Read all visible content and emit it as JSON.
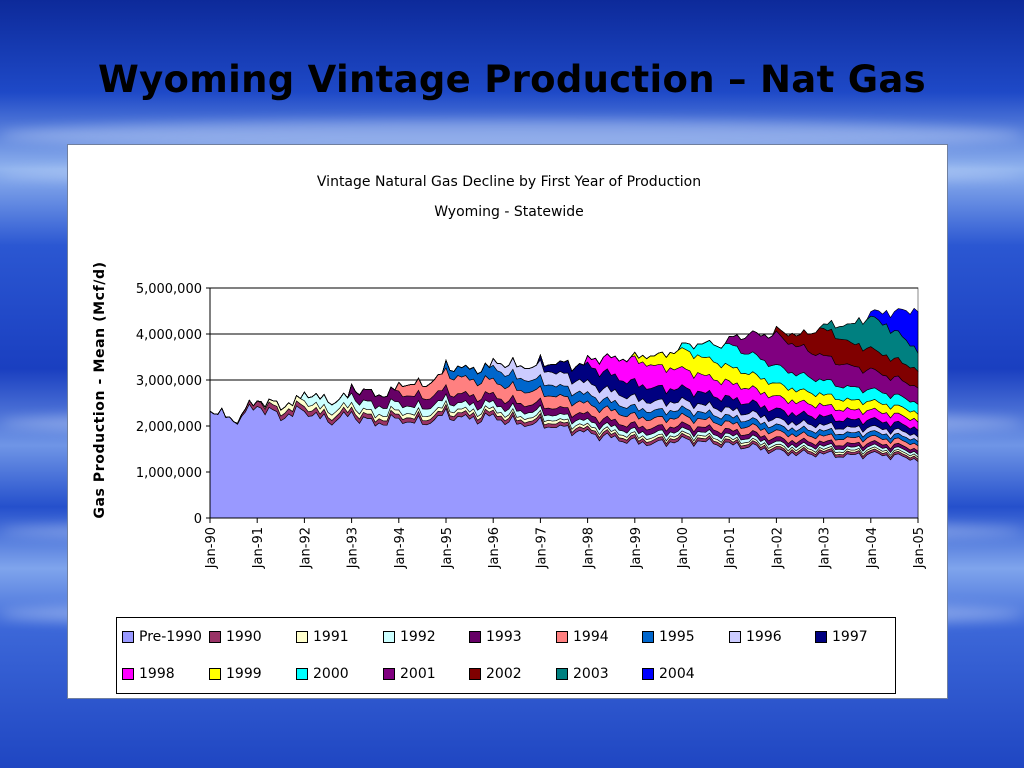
{
  "slide": {
    "title": "Wyoming Vintage Production – Nat Gas"
  },
  "chart_data": {
    "type": "area",
    "stacked": true,
    "title": "Vintage Natural Gas Decline by First Year of Production",
    "subtitle": "Wyoming - Statewide",
    "ylabel": "Gas Production - Mean (Mcf/d)",
    "xlabel": "",
    "ylim": [
      0,
      5000000
    ],
    "yticks": [
      "0",
      "1,000,000",
      "2,000,000",
      "3,000,000",
      "4,000,000",
      "5,000,000"
    ],
    "xticks": [
      "Jan-90",
      "Jan-91",
      "Jan-92",
      "Jan-93",
      "Jan-94",
      "Jan-95",
      "Jan-96",
      "Jan-97",
      "Jan-98",
      "Jan-99",
      "Jan-00",
      "Jan-01",
      "Jan-02",
      "Jan-03",
      "Jan-04",
      "Jan-05"
    ],
    "grid": "horizontal",
    "legend_position": "bottom",
    "x": [
      1990.0,
      1990.5,
      1991.0,
      1991.5,
      1992.0,
      1992.5,
      1993.0,
      1993.5,
      1994.0,
      1994.5,
      1995.0,
      1995.5,
      1996.0,
      1996.5,
      1997.0,
      1997.5,
      1998.0,
      1998.5,
      1999.0,
      1999.5,
      2000.0,
      2000.5,
      2001.0,
      2001.5,
      2002.0,
      2002.5,
      2003.0,
      2003.5,
      2004.0,
      2004.5,
      2005.0
    ],
    "series": [
      {
        "name": "Pre-1990",
        "color": "#9999ff",
        "start": 1990.0,
        "values": [
          2400000,
          2100000,
          2450000,
          2200000,
          2350000,
          2100000,
          2250000,
          2050000,
          2150000,
          2050000,
          2250000,
          2150000,
          2200000,
          2050000,
          2050000,
          1950000,
          1850000,
          1750000,
          1650000,
          1620000,
          1700000,
          1650000,
          1600000,
          1550000,
          1450000,
          1400000,
          1400000,
          1350000,
          1400000,
          1350000,
          1280000
        ]
      },
      {
        "name": "1990",
        "color": "#993366",
        "start": 1990.5,
        "values": [
          0,
          0,
          120000,
          110000,
          105000,
          100000,
          95000,
          92000,
          90000,
          88000,
          86000,
          84000,
          82000,
          80000,
          78000,
          76000,
          74000,
          72000,
          70000,
          68000,
          66000,
          64000,
          62000,
          60000,
          58000,
          56000,
          55000,
          54000,
          53000,
          52000,
          51000
        ]
      },
      {
        "name": "1991",
        "color": "#ffffcc",
        "start": 1991.0,
        "values": [
          0,
          0,
          0,
          130000,
          120000,
          110000,
          102000,
          95000,
          90000,
          86000,
          82000,
          79000,
          76000,
          73000,
          70000,
          68000,
          66000,
          64000,
          62000,
          60000,
          58000,
          56000,
          54000,
          52000,
          50000,
          49000,
          48000,
          47000,
          46000,
          45000,
          44000
        ]
      },
      {
        "name": "1992",
        "color": "#ccffff",
        "start": 1992.0,
        "values": [
          0,
          0,
          0,
          0,
          180000,
          220000,
          200000,
          185000,
          170000,
          160000,
          150000,
          140000,
          132000,
          125000,
          118000,
          112000,
          106000,
          100000,
          95000,
          90000,
          86000,
          82000,
          78000,
          75000,
          72000,
          69000,
          66000,
          64000,
          62000,
          60000,
          58000
        ]
      },
      {
        "name": "1993",
        "color": "#660066",
        "start": 1993.0,
        "values": [
          0,
          0,
          0,
          0,
          0,
          0,
          200000,
          260000,
          240000,
          220000,
          205000,
          190000,
          178000,
          166000,
          156000,
          146000,
          138000,
          130000,
          123000,
          116000,
          110000,
          104000,
          99000,
          94000,
          90000,
          86000,
          82000,
          79000,
          76000,
          73000,
          70000
        ]
      },
      {
        "name": "1994",
        "color": "#ff8080",
        "start": 1994.0,
        "values": [
          0,
          0,
          0,
          0,
          0,
          0,
          0,
          0,
          200000,
          280000,
          380000,
          350000,
          320000,
          295000,
          272000,
          252000,
          234000,
          218000,
          204000,
          192000,
          181000,
          171000,
          162000,
          154000,
          146000,
          139000,
          133000,
          127000,
          122000,
          117000,
          112000
        ]
      },
      {
        "name": "1995",
        "color": "#0066cc",
        "start": 1995.0,
        "values": [
          0,
          0,
          0,
          0,
          0,
          0,
          0,
          0,
          0,
          0,
          160000,
          240000,
          280000,
          260000,
          240000,
          222000,
          206000,
          192000,
          180000,
          169000,
          159000,
          150000,
          142000,
          135000,
          128000,
          122000,
          116000,
          111000,
          106000,
          101000,
          97000
        ]
      },
      {
        "name": "1996",
        "color": "#ccccff",
        "start": 1996.0,
        "values": [
          0,
          0,
          0,
          0,
          0,
          0,
          0,
          0,
          0,
          0,
          0,
          0,
          140000,
          260000,
          300000,
          275000,
          252000,
          232000,
          214000,
          198000,
          184000,
          171000,
          160000,
          150000,
          141000,
          133000,
          126000,
          119000,
          113000,
          107000,
          102000
        ]
      },
      {
        "name": "1997",
        "color": "#000080",
        "start": 1997.0,
        "values": [
          0,
          0,
          0,
          0,
          0,
          0,
          0,
          0,
          0,
          0,
          0,
          0,
          0,
          0,
          100000,
          250000,
          380000,
          350000,
          322000,
          297000,
          275000,
          255000,
          237000,
          221000,
          206000,
          193000,
          181000,
          170000,
          160000,
          151000,
          143000
        ]
      },
      {
        "name": "1998",
        "color": "#ff00ff",
        "start": 1998.0,
        "values": [
          0,
          0,
          0,
          0,
          0,
          0,
          0,
          0,
          0,
          0,
          0,
          0,
          0,
          0,
          0,
          0,
          150000,
          380000,
          520000,
          470000,
          420000,
          378000,
          342000,
          311000,
          284000,
          260000,
          239000,
          221000,
          205000,
          191000,
          178000
        ]
      },
      {
        "name": "1999",
        "color": "#ffff00",
        "start": 1999.0,
        "values": [
          0,
          0,
          0,
          0,
          0,
          0,
          0,
          0,
          0,
          0,
          0,
          0,
          0,
          0,
          0,
          0,
          0,
          0,
          80000,
          250000,
          420000,
          390000,
          350000,
          315000,
          284000,
          258000,
          236000,
          216000,
          199000,
          184000,
          171000
        ]
      },
      {
        "name": "2000",
        "color": "#00ffff",
        "start": 2000.0,
        "values": [
          0,
          0,
          0,
          0,
          0,
          0,
          0,
          0,
          0,
          0,
          0,
          0,
          0,
          0,
          0,
          0,
          0,
          0,
          0,
          0,
          100000,
          320000,
          470000,
          430000,
          385000,
          345000,
          310000,
          280000,
          254000,
          232000,
          212000
        ]
      },
      {
        "name": "2001",
        "color": "#800080",
        "start": 2001.0,
        "values": [
          0,
          0,
          0,
          0,
          0,
          0,
          0,
          0,
          0,
          0,
          0,
          0,
          0,
          0,
          0,
          0,
          0,
          0,
          0,
          0,
          0,
          0,
          150000,
          450000,
          680000,
          600000,
          530000,
          470000,
          420000,
          378000,
          342000
        ]
      },
      {
        "name": "2002",
        "color": "#800000",
        "start": 2002.0,
        "values": [
          0,
          0,
          0,
          0,
          0,
          0,
          0,
          0,
          0,
          0,
          0,
          0,
          0,
          0,
          0,
          0,
          0,
          0,
          0,
          0,
          0,
          0,
          0,
          0,
          100000,
          260000,
          600000,
          520000,
          460000,
          410000,
          368000
        ]
      },
      {
        "name": "2003",
        "color": "#008080",
        "start": 2003.0,
        "values": [
          0,
          0,
          0,
          0,
          0,
          0,
          0,
          0,
          0,
          0,
          0,
          0,
          0,
          0,
          0,
          0,
          0,
          0,
          0,
          0,
          0,
          0,
          0,
          0,
          0,
          0,
          100000,
          350000,
          700000,
          620000,
          420000
        ]
      },
      {
        "name": "2004",
        "color": "#0000ff",
        "start": 2004.0,
        "values": [
          0,
          0,
          0,
          0,
          0,
          0,
          0,
          0,
          0,
          0,
          0,
          0,
          0,
          0,
          0,
          0,
          0,
          0,
          0,
          0,
          0,
          0,
          0,
          0,
          0,
          0,
          0,
          0,
          100000,
          400000,
          900000
        ]
      }
    ]
  }
}
